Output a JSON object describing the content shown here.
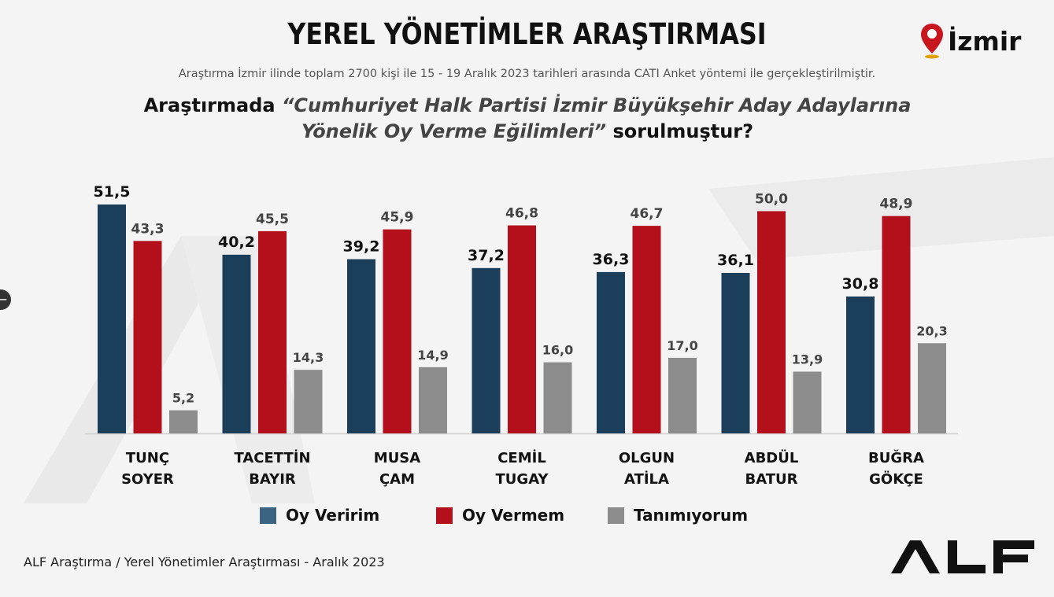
{
  "header": {
    "title": "YEREL YÖNETİMLER ARAŞTIRMASI",
    "subtitle": "Araştırma İzmir ilinde toplam 2700 kişi ile 15 - 19  Aralık 2023 tarihleri arasında CATI Anket yöntemi ile gerçekleştirilmiştir.",
    "question_prefix": "Araştırmada ",
    "question_italic": "“Cumhuriyet Halk Partisi İzmir Büyükşehir Aday Adaylarına Yönelik Oy Verme Eğilimleri”",
    "question_suffix": " sorulmuştur?",
    "city": "İzmir",
    "city_icon": "map-pin-icon"
  },
  "footer": {
    "source": "ALF Araştırma / Yerel Yönetimler Araştırması - Aralık 2023",
    "logo_text": "ALF"
  },
  "chart_data": {
    "type": "bar",
    "categories": [
      [
        "TUNÇ",
        "SOYER"
      ],
      [
        "TACETTİN",
        "BAYIR"
      ],
      [
        "MUSA",
        "ÇAM"
      ],
      [
        "CEMİL",
        "TUGAY"
      ],
      [
        "OLGUN",
        "ATİLA"
      ],
      [
        "ABDÜL",
        "BATUR"
      ],
      [
        "BUĞRA",
        "GÖKÇE"
      ]
    ],
    "series": [
      {
        "name": "Oy Veririm",
        "color": "#1b3f5a",
        "values": [
          51.5,
          40.2,
          39.2,
          37.2,
          36.3,
          36.1,
          30.8
        ],
        "labels": [
          "51,5",
          "40,2",
          "39,2",
          "37,2",
          "36,3",
          "36,1",
          "30,8"
        ]
      },
      {
        "name": "Oy Vermem",
        "color": "#b3101c",
        "values": [
          43.3,
          45.5,
          45.9,
          46.8,
          46.7,
          50.0,
          48.9
        ],
        "labels": [
          "43,3",
          "45,5",
          "45,9",
          "46,8",
          "46,7",
          "50,0",
          "48,9"
        ]
      },
      {
        "name": "Tanımıyorum",
        "color": "#8c8c8c",
        "values": [
          5.2,
          14.3,
          14.9,
          16.0,
          17.0,
          13.9,
          20.3
        ],
        "labels": [
          "5,2",
          "14,3",
          "14,9",
          "16,0",
          "17,0",
          "13,9",
          "20,3"
        ]
      }
    ],
    "legend_swatch_colors": [
      "#3b6482",
      "#b3101c",
      "#8c8c8c"
    ],
    "ylim": [
      0,
      51.5
    ],
    "grid": false,
    "legend_position": "bottom"
  }
}
